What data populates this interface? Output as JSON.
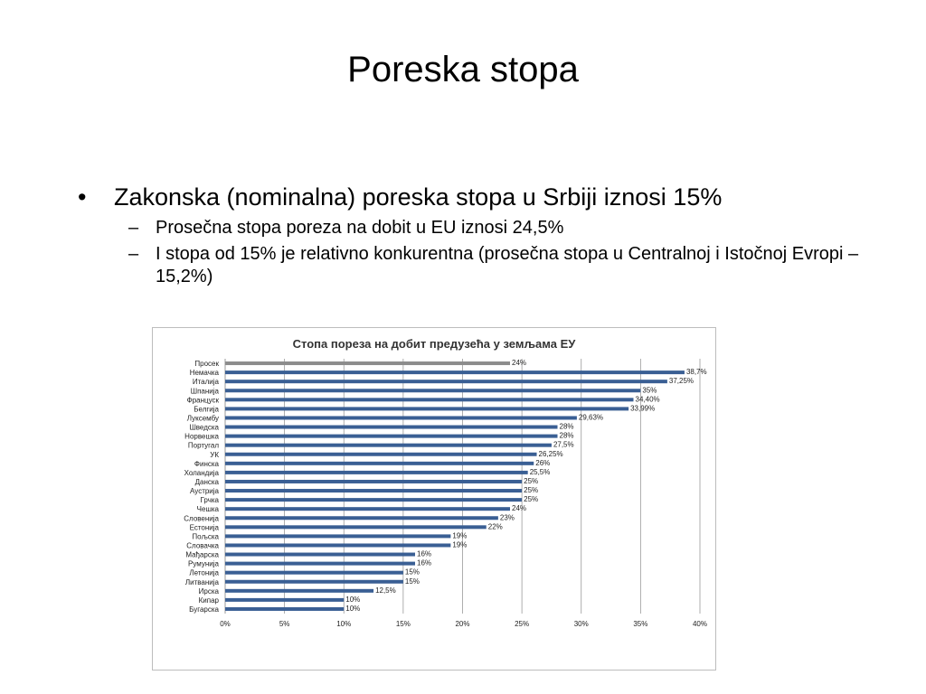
{
  "slide": {
    "title": "Poreska stopa",
    "bullets": [
      {
        "text": "Zakonska (nominalna) poreska stopa u Srbiji iznosi 15%",
        "sub": [
          "Prosečna stopa poreza na dobit u EU iznosi 24,5%",
          "I stopa od 15% je relativno konkurentna (prosečna stopa u Centralnoj i Istočnoj Evropi – 15,2%)"
        ]
      }
    ]
  },
  "chart_data": {
    "type": "bar",
    "orientation": "horizontal",
    "title": "Стопа пореза на добит предузећа у земљама ЕУ",
    "categories": [
      "Просек",
      "Немачка",
      "Италија",
      "Шпанија",
      "Француск",
      "Белгија",
      "Луксембу",
      "Шведска",
      "Норвешка",
      "Португал",
      "УК",
      "Финска",
      "Холандија",
      "Данска",
      "Аустрија",
      "Грчка",
      "Чешка",
      "Словенија",
      "Естонија",
      "Пољска",
      "Словачка",
      "Мађарска",
      "Румунија",
      "Летонија",
      "Литванија",
      "Ирска",
      "Кипар",
      "Бугарска"
    ],
    "values": [
      24,
      38.7,
      37.25,
      35,
      34.4,
      33.99,
      29.63,
      28,
      28,
      27.5,
      26.25,
      26,
      25.5,
      25,
      25,
      25,
      24,
      23,
      22,
      19,
      19,
      16,
      16,
      15,
      15,
      12.5,
      10,
      10
    ],
    "data_labels": [
      "24%",
      "38,7%",
      "37,25%",
      "35%",
      "34,40%",
      "33,99%",
      "29,63%",
      "28%",
      "28%",
      "27,5%",
      "26,25%",
      "26%",
      "25,5%",
      "25%",
      "25%",
      "25%",
      "24%",
      "23%",
      "22%",
      "19%",
      "19%",
      "16%",
      "16%",
      "15%",
      "15%",
      "12,5%",
      "10%",
      "10%"
    ],
    "x_ticks": [
      "0%",
      "5%",
      "10%",
      "15%",
      "20%",
      "25%",
      "30%",
      "35%",
      "40%"
    ],
    "xlim": [
      0,
      40
    ],
    "grid": "vertical",
    "colors": {
      "bar": "#3a5f94",
      "highlight_bar": "#8c8c8c",
      "grid": "#9a9a9a"
    }
  }
}
